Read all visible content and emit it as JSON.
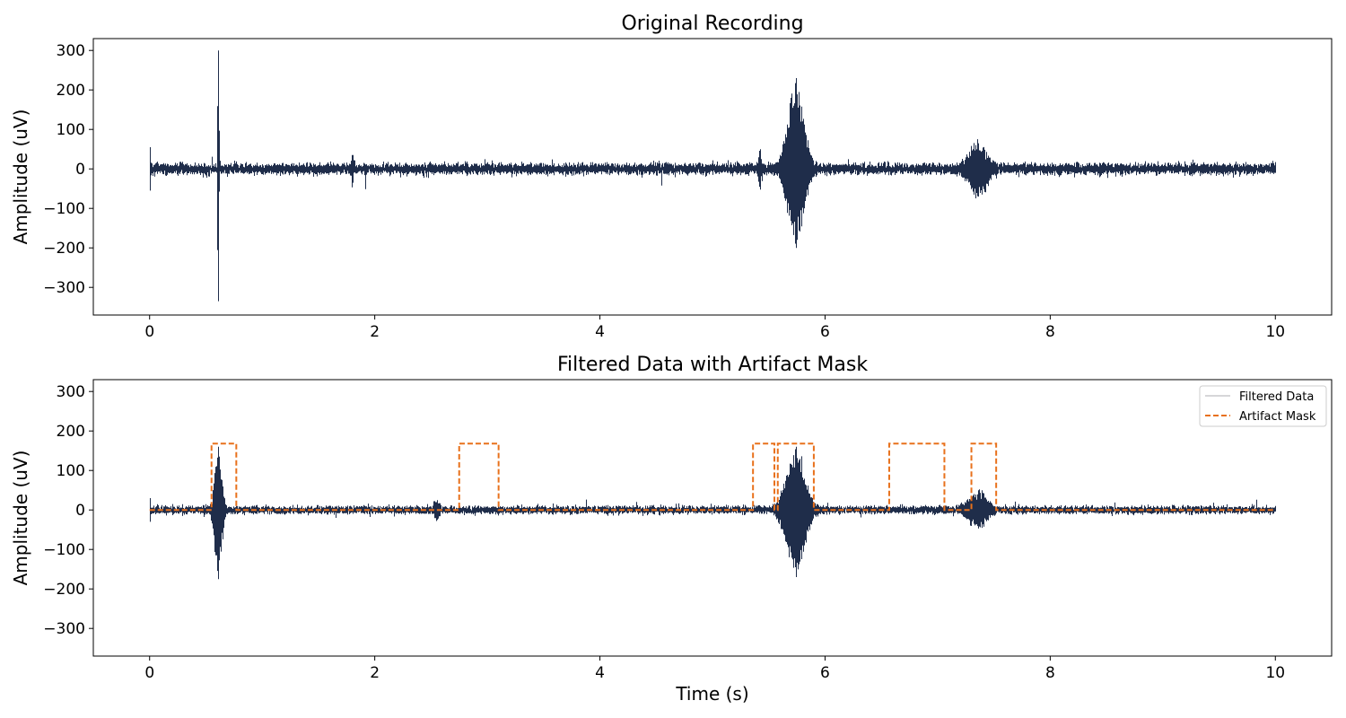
{
  "colors": {
    "signal": "#1f2d4a",
    "mask": "#e8711c",
    "legend_signal": "#c8c8cc",
    "axis": "#000000"
  },
  "chart_data": [
    {
      "type": "line",
      "title": "Original Recording",
      "xlabel": "",
      "ylabel": "Amplitude (uV)",
      "xlim": [
        -0.5,
        10.5
      ],
      "ylim": [
        -370,
        330
      ],
      "xticks": [
        0,
        2,
        4,
        6,
        8,
        10
      ],
      "yticks": [
        -300,
        -200,
        -100,
        0,
        100,
        200,
        300
      ],
      "series": [
        {
          "noise_std": 6.5,
          "duration": 10,
          "events": [
            {
              "t": 0.0,
              "amp": 55,
              "width": 0.01
            },
            {
              "t": 0.61,
              "amp": 300,
              "min": -335,
              "width": 0.004
            },
            {
              "t": 1.8,
              "amp": 35,
              "width": 0.01
            },
            {
              "t": 5.42,
              "amp": 50,
              "width": 0.01
            },
            {
              "t": 5.74,
              "amp": 230,
              "min": -200,
              "width": 0.07
            },
            {
              "t": 7.36,
              "amp": 65,
              "min": -70,
              "width": 0.08
            }
          ]
        }
      ]
    },
    {
      "type": "line",
      "title": "Filtered Data with Artifact Mask",
      "xlabel": "Time (s)",
      "ylabel": "Amplitude (uV)",
      "xlim": [
        -0.5,
        10.5
      ],
      "ylim": [
        -370,
        330
      ],
      "xticks": [
        0,
        2,
        4,
        6,
        8,
        10
      ],
      "yticks": [
        -300,
        -200,
        -100,
        0,
        100,
        200,
        300
      ],
      "legend_position": "upper-right",
      "series": [
        {
          "name": "Filtered Data",
          "noise_std": 4.5,
          "duration": 10,
          "events": [
            {
              "t": 0.0,
              "amp": 30,
              "width": 0.01
            },
            {
              "t": 0.61,
              "amp": 160,
              "min": -175,
              "width": 0.03
            },
            {
              "t": 2.55,
              "amp": 25,
              "width": 0.02
            },
            {
              "t": 5.74,
              "amp": 160,
              "min": -170,
              "width": 0.08
            },
            {
              "t": 7.36,
              "amp": 50,
              "min": -45,
              "width": 0.08
            }
          ]
        },
        {
          "name": "Artifact Mask",
          "style": "dashed",
          "high": 168,
          "low": 0,
          "intervals": [
            [
              0.55,
              0.77
            ],
            [
              2.75,
              3.1
            ],
            [
              5.36,
              5.55
            ],
            [
              5.58,
              5.9
            ],
            [
              6.57,
              7.06
            ],
            [
              7.3,
              7.52
            ]
          ]
        }
      ]
    }
  ]
}
